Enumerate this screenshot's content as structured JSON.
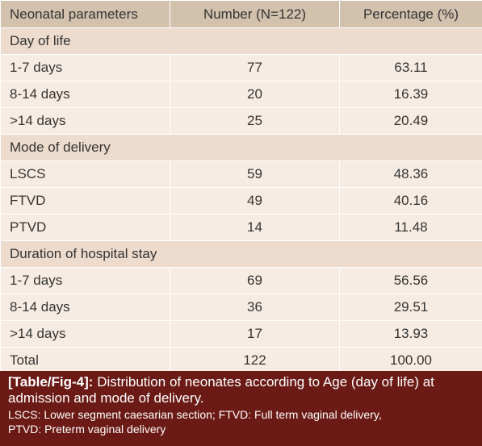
{
  "table": {
    "headers": [
      "Neonatal parameters",
      "Number (N=122)",
      "Percentage (%)"
    ],
    "sections": [
      {
        "title": "Day of life",
        "rows": [
          {
            "label": "1-7 days",
            "number": "77",
            "percentage": "63.11"
          },
          {
            "label": "8-14 days",
            "number": "20",
            "percentage": "16.39"
          },
          {
            "label": ">14 days",
            "number": "25",
            "percentage": "20.49"
          }
        ]
      },
      {
        "title": "Mode of delivery",
        "rows": [
          {
            "label": "LSCS",
            "number": "59",
            "percentage": "48.36"
          },
          {
            "label": "FTVD",
            "number": "49",
            "percentage": "40.16"
          },
          {
            "label": "PTVD",
            "number": "14",
            "percentage": "11.48"
          }
        ]
      },
      {
        "title": "Duration of hospital stay",
        "rows": [
          {
            "label": "1-7 days",
            "number": "69",
            "percentage": "56.56"
          },
          {
            "label": "8-14 days",
            "number": "36",
            "percentage": "29.51"
          },
          {
            "label": ">14 days",
            "number": "17",
            "percentage": "13.93"
          }
        ]
      }
    ],
    "total": {
      "label": "Total",
      "number": "122",
      "percentage": "100.00"
    }
  },
  "caption": {
    "label": "[Table/Fig-4]:",
    "text": "Distribution of neonates according to Age (day of life) at admission and mode of delivery.",
    "note_line1": "LSCS: Lower segment caesarian section; FTVD: Full term vaginal delivery,",
    "note_line2": "PTVD: Preterm vaginal delivery"
  },
  "colors": {
    "header_bg": "#d2c1ad",
    "section_bg": "#eddccd",
    "row_bg": "#f7ece3",
    "caption_bg": "#6b1a15"
  }
}
